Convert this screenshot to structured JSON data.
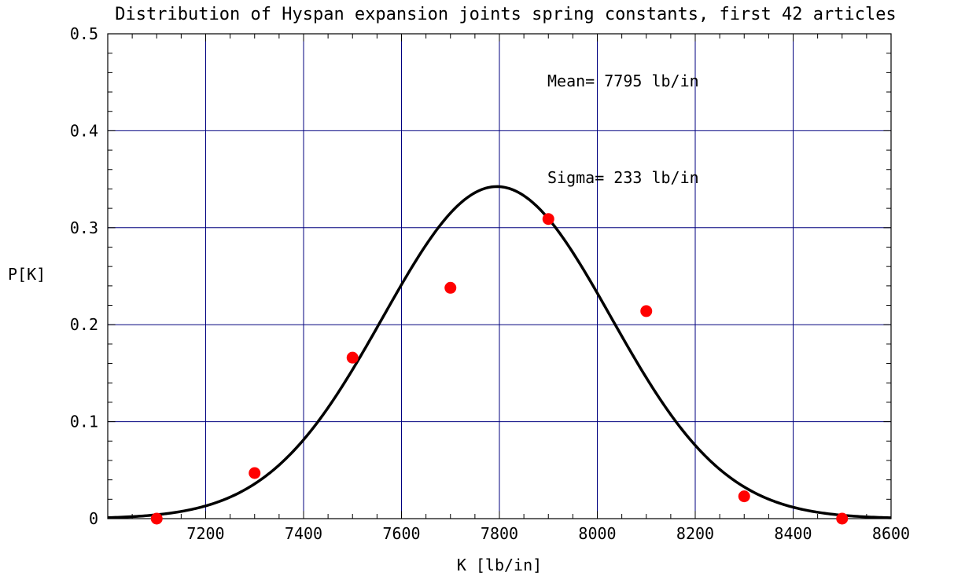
{
  "chart_data": {
    "type": "line",
    "title": "Distribution of Hyspan expansion joints spring constants, first 42 articles",
    "xlabel": "K [lb/in]",
    "ylabel": "P[K]",
    "xlim": [
      7000,
      8600
    ],
    "ylim": [
      0,
      0.5
    ],
    "x_ticks": [
      "7200",
      "7400",
      "7600",
      "7800",
      "8000",
      "8200",
      "8400",
      "8600"
    ],
    "y_ticks": [
      "0",
      "0.1",
      "0.2",
      "0.3",
      "0.4",
      "0.5"
    ],
    "grid": true,
    "annotations": {
      "mean": "Mean= 7795 lb/in",
      "sigma": "Sigma= 233 lb/in"
    },
    "series": [
      {
        "kind": "line",
        "distribution": "normal",
        "mean": 7795,
        "sigma": 233,
        "bin_width": 200,
        "color": "#000000"
      },
      {
        "kind": "scatter",
        "color": "#ff0000",
        "x": [
          7100,
          7300,
          7500,
          7700,
          7900,
          8100,
          8300,
          8500
        ],
        "y": [
          0.0,
          0.047,
          0.166,
          0.238,
          0.309,
          0.214,
          0.023,
          0.0
        ]
      }
    ],
    "colors": {
      "grid": "#00007f",
      "frame": "#000000"
    }
  }
}
